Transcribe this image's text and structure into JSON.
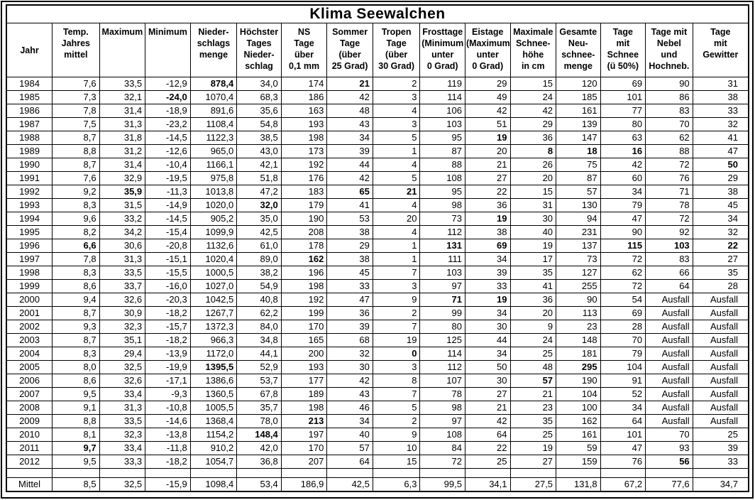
{
  "title": "Klima Seewalchen",
  "columns": [
    {
      "id": "jahr",
      "lines": [
        "Jahr"
      ]
    },
    {
      "id": "temp-jahresmittel",
      "lines": [
        "Temp.",
        "Jahres",
        "mittel"
      ]
    },
    {
      "id": "maximum",
      "lines": [
        "Maximum"
      ]
    },
    {
      "id": "minimum",
      "lines": [
        "Minimum"
      ]
    },
    {
      "id": "niederschlagsmenge",
      "lines": [
        "Nieder-",
        "schlags",
        "menge"
      ]
    },
    {
      "id": "hoechster-tagesniederschlag",
      "lines": [
        "Höchster",
        "Tages",
        "Nieder-",
        "schlag"
      ]
    },
    {
      "id": "ns-tage",
      "lines": [
        "NS",
        "Tage",
        "über",
        "0,1 mm"
      ]
    },
    {
      "id": "sommertage",
      "lines": [
        "Sommer",
        "Tage",
        "(über",
        "25 Grad)"
      ]
    },
    {
      "id": "tropentage",
      "lines": [
        "Tropen",
        "Tage",
        "(über",
        "30 Grad)"
      ]
    },
    {
      "id": "frosttage",
      "lines": [
        "Frosttage",
        "(Minimum",
        "unter",
        "0 Grad)"
      ]
    },
    {
      "id": "eistage",
      "lines": [
        "Eistage",
        "(Maximum",
        "unter",
        "0 Grad)"
      ]
    },
    {
      "id": "max-schneehoehe",
      "lines": [
        "Maximale",
        "Schnee-",
        "höhe",
        "in cm"
      ]
    },
    {
      "id": "neuschneemenge",
      "lines": [
        "Gesamte",
        "Neu-",
        "schnee-",
        "menge"
      ]
    },
    {
      "id": "tage-mit-schnee",
      "lines": [
        "Tage",
        "mit",
        "Schnee",
        "(ü 50%)"
      ]
    },
    {
      "id": "tage-mit-nebel",
      "lines": [
        "Tage mit",
        "Nebel",
        "und",
        "Hochneb."
      ]
    },
    {
      "id": "tage-mit-gewitter",
      "lines": [
        "Tage",
        "mit",
        "Gewitter"
      ]
    }
  ],
  "rows": [
    {
      "cells": [
        "1984",
        "7,6",
        "33,5",
        "-12,9",
        "878,4",
        "34,0",
        "174",
        "21",
        "2",
        "119",
        "29",
        "15",
        "120",
        "69",
        "90",
        "31"
      ],
      "bold": [
        4,
        7
      ]
    },
    {
      "cells": [
        "1985",
        "7,3",
        "32,1",
        "-24,0",
        "1070,4",
        "68,3",
        "186",
        "42",
        "3",
        "114",
        "49",
        "24",
        "185",
        "101",
        "86",
        "38"
      ],
      "bold": [
        3
      ]
    },
    {
      "cells": [
        "1986",
        "7,8",
        "31,4",
        "-18,9",
        "891,6",
        "35,6",
        "163",
        "48",
        "4",
        "106",
        "42",
        "42",
        "161",
        "77",
        "83",
        "33"
      ],
      "bold": []
    },
    {
      "cells": [
        "1987",
        "7,5",
        "31,3",
        "-23,2",
        "1108,4",
        "54,8",
        "193",
        "43",
        "3",
        "103",
        "51",
        "29",
        "139",
        "80",
        "70",
        "32"
      ],
      "bold": []
    },
    {
      "cells": [
        "1988",
        "8,7",
        "31,8",
        "-14,5",
        "1122,3",
        "38,5",
        "198",
        "34",
        "5",
        "95",
        "19",
        "36",
        "147",
        "63",
        "62",
        "41"
      ],
      "bold": [
        10
      ]
    },
    {
      "cells": [
        "1989",
        "8,8",
        "31,2",
        "-12,6",
        "965,0",
        "43,0",
        "173",
        "39",
        "1",
        "87",
        "20",
        "8",
        "18",
        "16",
        "88",
        "47"
      ],
      "bold": [
        11,
        12,
        13
      ]
    },
    {
      "cells": [
        "1990",
        "8,7",
        "31,4",
        "-10,4",
        "1166,1",
        "42,1",
        "192",
        "44",
        "4",
        "88",
        "21",
        "26",
        "75",
        "42",
        "72",
        "50"
      ],
      "bold": [
        15
      ]
    },
    {
      "cells": [
        "1991",
        "7,6",
        "32,9",
        "-19,5",
        "975,8",
        "51,8",
        "176",
        "42",
        "5",
        "108",
        "27",
        "20",
        "87",
        "60",
        "76",
        "29"
      ],
      "bold": []
    },
    {
      "cells": [
        "1992",
        "9,2",
        "35,9",
        "-11,3",
        "1013,8",
        "47,2",
        "183",
        "65",
        "21",
        "95",
        "22",
        "15",
        "57",
        "34",
        "71",
        "38"
      ],
      "bold": [
        2,
        7,
        8
      ]
    },
    {
      "cells": [
        "1993",
        "8,3",
        "31,5",
        "-14,9",
        "1020,0",
        "32,0",
        "179",
        "41",
        "4",
        "98",
        "36",
        "31",
        "130",
        "79",
        "78",
        "45"
      ],
      "bold": [
        5
      ]
    },
    {
      "cells": [
        "1994",
        "9,6",
        "33,2",
        "-14,5",
        "905,2",
        "35,0",
        "190",
        "53",
        "20",
        "73",
        "19",
        "30",
        "94",
        "47",
        "72",
        "34"
      ],
      "bold": [
        10
      ]
    },
    {
      "cells": [
        "1995",
        "8,2",
        "34,2",
        "-15,4",
        "1099,9",
        "42,5",
        "208",
        "38",
        "4",
        "112",
        "38",
        "40",
        "231",
        "90",
        "92",
        "32"
      ],
      "bold": []
    },
    {
      "cells": [
        "1996",
        "6,6",
        "30,6",
        "-20,8",
        "1132,6",
        "61,0",
        "178",
        "29",
        "1",
        "131",
        "69",
        "19",
        "137",
        "115",
        "103",
        "22"
      ],
      "bold": [
        1,
        9,
        10,
        13,
        14,
        15
      ]
    },
    {
      "cells": [
        "1997",
        "7,8",
        "31,3",
        "-15,1",
        "1020,4",
        "89,0",
        "162",
        "38",
        "1",
        "111",
        "34",
        "17",
        "73",
        "72",
        "83",
        "27"
      ],
      "bold": [
        6
      ]
    },
    {
      "cells": [
        "1998",
        "8,3",
        "33,5",
        "-15,5",
        "1000,5",
        "38,2",
        "196",
        "45",
        "7",
        "103",
        "39",
        "35",
        "127",
        "62",
        "66",
        "35"
      ],
      "bold": []
    },
    {
      "cells": [
        "1999",
        "8,6",
        "33,7",
        "-16,0",
        "1027,0",
        "54,9",
        "198",
        "33",
        "3",
        "97",
        "33",
        "41",
        "255",
        "72",
        "64",
        "28"
      ],
      "bold": []
    },
    {
      "cells": [
        "2000",
        "9,4",
        "32,6",
        "-20,3",
        "1042,5",
        "40,8",
        "192",
        "47",
        "9",
        "71",
        "19",
        "36",
        "90",
        "54",
        "Ausfall",
        "Ausfall"
      ],
      "bold": [
        9,
        10
      ]
    },
    {
      "cells": [
        "2001",
        "8,7",
        "30,9",
        "-18,2",
        "1267,7",
        "62,2",
        "199",
        "36",
        "2",
        "99",
        "34",
        "20",
        "113",
        "69",
        "Ausfall",
        "Ausfall"
      ],
      "bold": []
    },
    {
      "cells": [
        "2002",
        "9,3",
        "32,3",
        "-15,7",
        "1372,3",
        "84,0",
        "170",
        "39",
        "7",
        "80",
        "30",
        "9",
        "23",
        "28",
        "Ausfall",
        "Ausfall"
      ],
      "bold": []
    },
    {
      "cells": [
        "2003",
        "8,7",
        "35,1",
        "-18,2",
        "966,3",
        "34,8",
        "165",
        "68",
        "19",
        "125",
        "44",
        "24",
        "148",
        "70",
        "Ausfall",
        "Ausfall"
      ],
      "bold": []
    },
    {
      "cells": [
        "2004",
        "8,3",
        "29,4",
        "-13,9",
        "1172,0",
        "44,1",
        "200",
        "32",
        "0",
        "114",
        "34",
        "25",
        "181",
        "79",
        "Ausfall",
        "Ausfall"
      ],
      "bold": [
        8
      ]
    },
    {
      "cells": [
        "2005",
        "8,0",
        "32,5",
        "-19,9",
        "1395,5",
        "52,9",
        "193",
        "30",
        "3",
        "112",
        "50",
        "48",
        "295",
        "104",
        "Ausfall",
        "Ausfall"
      ],
      "bold": [
        4,
        12
      ]
    },
    {
      "cells": [
        "2006",
        "8,6",
        "32,6",
        "-17,1",
        "1386,6",
        "53,7",
        "177",
        "42",
        "8",
        "107",
        "30",
        "57",
        "190",
        "91",
        "Ausfall",
        "Ausfall"
      ],
      "bold": [
        11
      ]
    },
    {
      "cells": [
        "2007",
        "9,5",
        "33,4",
        "-9,3",
        "1360,5",
        "67,8",
        "189",
        "43",
        "7",
        "78",
        "27",
        "21",
        "104",
        "52",
        "Ausfall",
        "Ausfall"
      ],
      "bold": []
    },
    {
      "cells": [
        "2008",
        "9,1",
        "31,3",
        "-10,8",
        "1005,5",
        "35,7",
        "198",
        "46",
        "5",
        "98",
        "21",
        "23",
        "100",
        "34",
        "Ausfall",
        "Ausfall"
      ],
      "bold": []
    },
    {
      "cells": [
        "2009",
        "8,8",
        "33,5",
        "-14,6",
        "1368,4",
        "78,0",
        "213",
        "34",
        "2",
        "97",
        "42",
        "35",
        "162",
        "64",
        "Ausfall",
        "Ausfall"
      ],
      "bold": [
        6
      ]
    },
    {
      "cells": [
        "2010",
        "8,1",
        "32,3",
        "-13,8",
        "1154,2",
        "148,4",
        "197",
        "40",
        "9",
        "108",
        "64",
        "25",
        "161",
        "101",
        "70",
        "25"
      ],
      "bold": [
        5
      ]
    },
    {
      "cells": [
        "2011",
        "9,7",
        "33,4",
        "-11,8",
        "910,2",
        "42,0",
        "170",
        "57",
        "10",
        "84",
        "22",
        "19",
        "59",
        "47",
        "93",
        "39"
      ],
      "bold": [
        1
      ]
    },
    {
      "cells": [
        "2012",
        "9,5",
        "33,3",
        "-18,2",
        "1054,7",
        "36,8",
        "207",
        "64",
        "15",
        "72",
        "25",
        "27",
        "159",
        "76",
        "56",
        "33"
      ],
      "bold": [
        14
      ]
    }
  ],
  "mittel": {
    "cells": [
      "Mittel",
      "8,5",
      "32,5",
      "-15,9",
      "1098,4",
      "53,4",
      "186,9",
      "42,5",
      "6,3",
      "99,5",
      "34,1",
      "27,5",
      "131,8",
      "67,2",
      "77,6",
      "34,7"
    ],
    "bold": []
  }
}
